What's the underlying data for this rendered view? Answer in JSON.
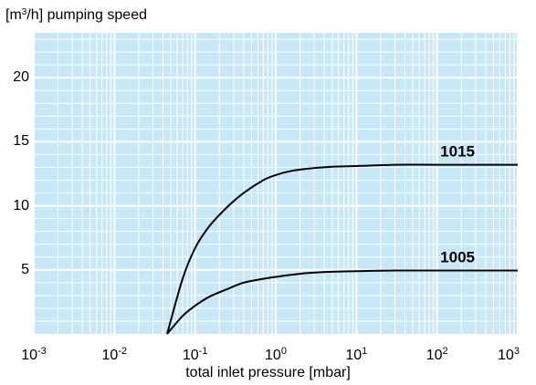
{
  "chart_data": {
    "type": "line",
    "title": "",
    "ylabel": {
      "base": "[m",
      "sup": "3",
      "rest": "/h] pumping speed"
    },
    "xlabel": "total inlet pressure [mbar]",
    "xscale": "log",
    "xlim": [
      0.001,
      1000
    ],
    "ylim": [
      0,
      23.5
    ],
    "grid": true,
    "colors": {
      "plot_background": "#c9e8f7",
      "grid": "#ffffff",
      "curve": "#000000"
    },
    "yticks": [
      {
        "value": 5,
        "label": "5"
      },
      {
        "value": 10,
        "label": "10"
      },
      {
        "value": 15,
        "label": "15"
      },
      {
        "value": 20,
        "label": "20"
      }
    ],
    "xticks": [
      {
        "value": 0.001,
        "base": "10",
        "exp": "-3"
      },
      {
        "value": 0.01,
        "base": "10",
        "exp": "-2"
      },
      {
        "value": 0.1,
        "base": "10",
        "exp": "-1"
      },
      {
        "value": 1,
        "base": "10",
        "exp": "0"
      },
      {
        "value": 10,
        "base": "10",
        "exp": "1"
      },
      {
        "value": 100,
        "base": "10",
        "exp": "2"
      },
      {
        "value": 1000,
        "base": "10",
        "exp": "3"
      }
    ],
    "series": [
      {
        "name": "1015",
        "x": [
          0.045,
          0.07,
          0.1,
          0.15,
          0.25,
          0.4,
          0.7,
          1,
          1.5,
          2.5,
          5,
          10,
          30,
          100,
          1000
        ],
        "y": [
          0,
          4.3,
          6.7,
          8.4,
          9.9,
          11.0,
          12.0,
          12.4,
          12.7,
          12.9,
          13.05,
          13.1,
          13.2,
          13.2,
          13.2
        ]
      },
      {
        "name": "1005",
        "x": [
          0.045,
          0.07,
          0.1,
          0.15,
          0.25,
          0.4,
          0.7,
          1,
          1.5,
          2.5,
          5,
          10,
          30,
          100,
          1000
        ],
        "y": [
          0,
          1.4,
          2.2,
          2.9,
          3.5,
          4.0,
          4.3,
          4.45,
          4.6,
          4.75,
          4.85,
          4.9,
          4.95,
          4.95,
          4.95
        ]
      }
    ]
  }
}
